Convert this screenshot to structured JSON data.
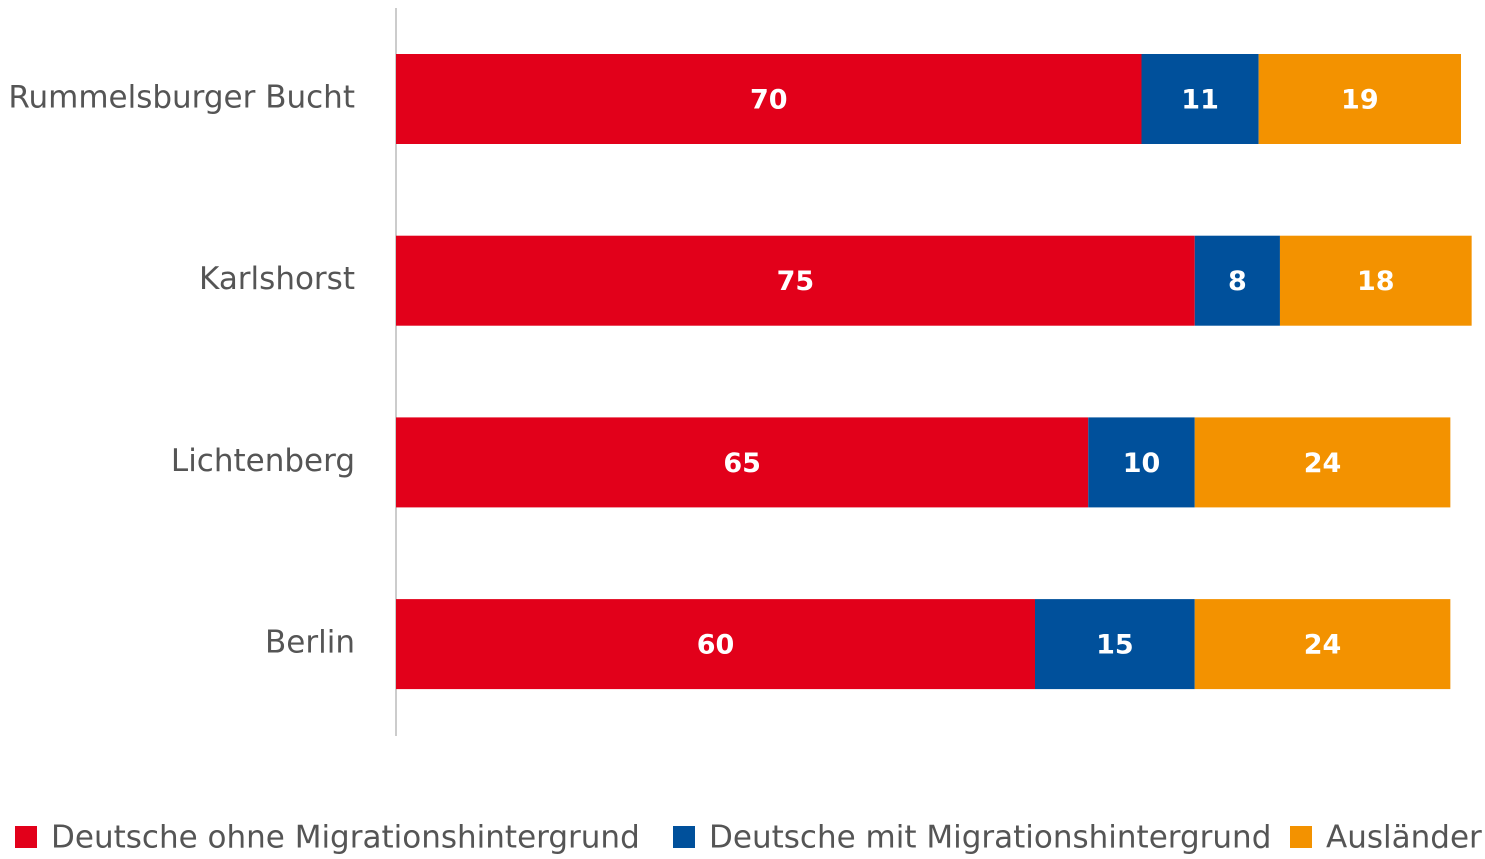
{
  "chart_data": {
    "type": "stacked-bar-horizontal",
    "categories": [
      "Rummelsburger Bucht",
      "Karlshorst",
      "Lichtenberg",
      "Berlin"
    ],
    "series": [
      {
        "name": "Deutsche ohne Migrationshintergrund",
        "color": "#e2001a",
        "values": [
          70,
          75,
          65,
          60
        ]
      },
      {
        "name": "Deutsche mit Migrationshintergrund",
        "color": "#00509b",
        "values": [
          11,
          8,
          10,
          15
        ]
      },
      {
        "name": "Ausländer",
        "color": "#f39200",
        "values": [
          19,
          18,
          24,
          24
        ]
      }
    ],
    "xlim": [
      0,
      100
    ],
    "legend": "bottom"
  }
}
